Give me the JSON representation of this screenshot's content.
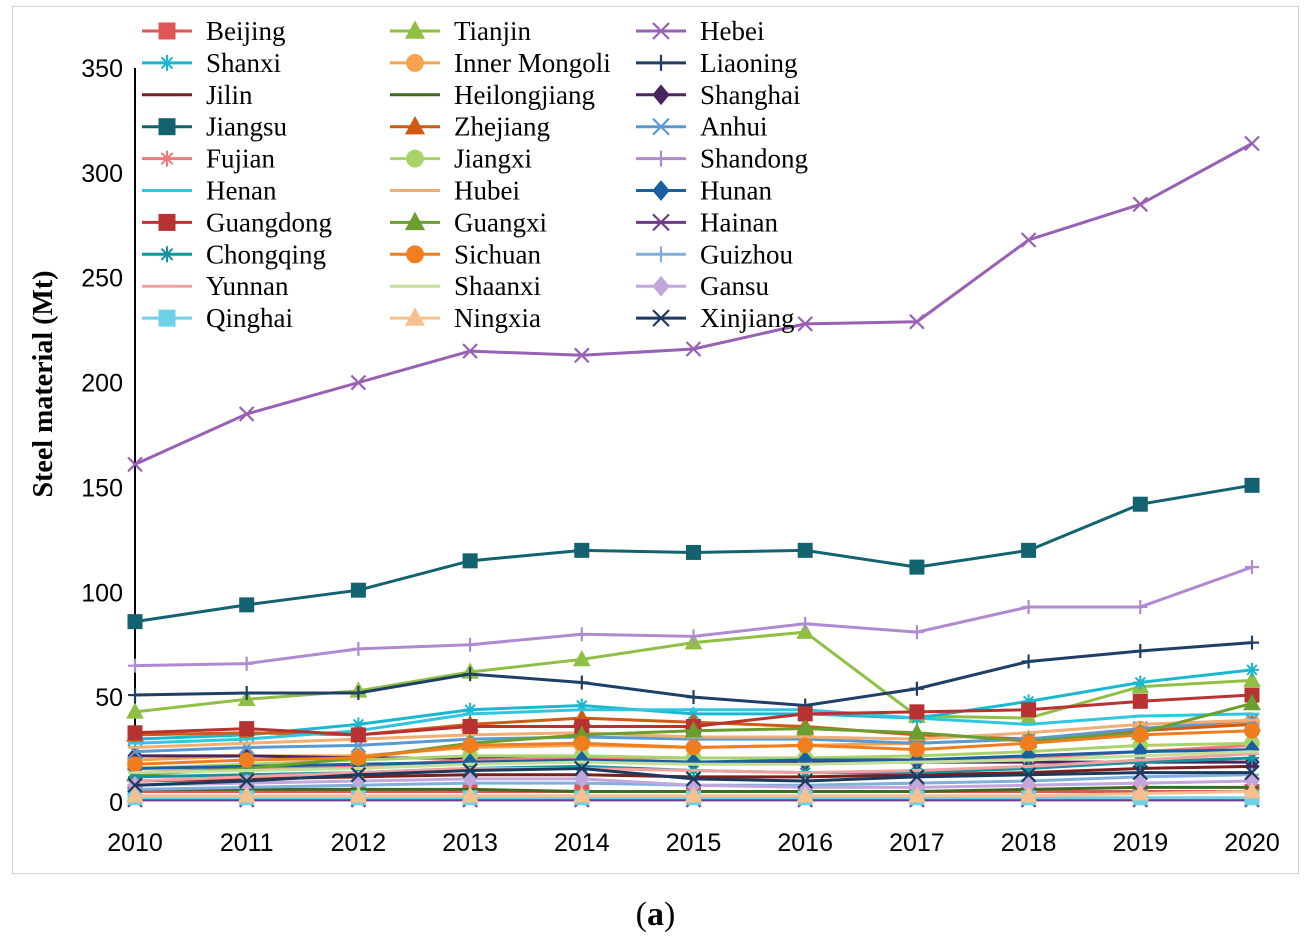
{
  "caption": {
    "open": "(",
    "letter": "a",
    "close": ")"
  },
  "chart_data": {
    "type": "line",
    "title": "",
    "xlabel": "",
    "ylabel": "Steel material  (Mt)",
    "ylim": [
      0,
      350
    ],
    "yticks": [
      0,
      50,
      100,
      150,
      200,
      250,
      300,
      350
    ],
    "x": [
      2010,
      2011,
      2012,
      2013,
      2014,
      2015,
      2016,
      2017,
      2018,
      2019,
      2020
    ],
    "legend_position": "top-left",
    "series": [
      {
        "name": "Beijing",
        "color": "#e05555",
        "marker": "square",
        "values": [
          5,
          5,
          5,
          5,
          5,
          5,
          5,
          5,
          5,
          5,
          5
        ]
      },
      {
        "name": "Tianjin",
        "color": "#8fbf45",
        "marker": "triangle",
        "values": [
          43,
          49,
          53,
          62,
          68,
          76,
          81,
          41,
          40,
          55,
          58
        ]
      },
      {
        "name": "Hebei",
        "color": "#9a60b4",
        "marker": "x",
        "values": [
          161,
          185,
          200,
          215,
          213,
          216,
          228,
          229,
          268,
          285,
          314
        ]
      },
      {
        "name": "Shanxi",
        "color": "#1ab8d0",
        "marker": "asterisk",
        "values": [
          30,
          32,
          37,
          44,
          46,
          42,
          42,
          40,
          48,
          57,
          63
        ]
      },
      {
        "name": "Inner Mongoli",
        "color": "#f7a24c",
        "marker": "circle",
        "values": [
          20,
          22,
          22,
          26,
          27,
          26,
          27,
          28,
          30,
          35,
          38
        ]
      },
      {
        "name": "Liaoning",
        "color": "#1f3f66",
        "marker": "plus",
        "values": [
          51,
          52,
          52,
          61,
          57,
          50,
          46,
          54,
          67,
          72,
          76
        ]
      },
      {
        "name": "Jilin",
        "color": "#7b1e1e",
        "marker": "dash",
        "values": [
          10,
          11,
          12,
          13,
          13,
          12,
          12,
          13,
          14,
          16,
          17
        ]
      },
      {
        "name": "Heilongjiang",
        "color": "#3d6b1f",
        "marker": "dash",
        "values": [
          6,
          6,
          6,
          6,
          5,
          5,
          5,
          5,
          6,
          7,
          7
        ]
      },
      {
        "name": "Shanghai",
        "color": "#4a2560",
        "marker": "diamond",
        "values": [
          22,
          22,
          21,
          21,
          20,
          19,
          19,
          19,
          19,
          19,
          19
        ]
      },
      {
        "name": "Jiangsu",
        "color": "#12626f",
        "marker": "square",
        "values": [
          86,
          94,
          101,
          115,
          120,
          119,
          120,
          112,
          120,
          142,
          151
        ]
      },
      {
        "name": "Zhejiang",
        "color": "#d05a12",
        "marker": "triangle",
        "values": [
          32,
          33,
          32,
          37,
          40,
          38,
          36,
          32,
          30,
          34,
          37
        ]
      },
      {
        "name": "Anhui",
        "color": "#5a9ad2",
        "marker": "x",
        "values": [
          24,
          26,
          27,
          30,
          31,
          30,
          30,
          28,
          30,
          35,
          39
        ]
      },
      {
        "name": "Fujian",
        "color": "#f07a7a",
        "marker": "asterisk",
        "values": [
          14,
          16,
          17,
          20,
          21,
          21,
          21,
          20,
          21,
          24,
          27
        ]
      },
      {
        "name": "Jiangxi",
        "color": "#a8d36b",
        "marker": "circle",
        "values": [
          16,
          18,
          20,
          22,
          22,
          21,
          21,
          22,
          24,
          27,
          28
        ]
      },
      {
        "name": "Shandong",
        "color": "#b08ad0",
        "marker": "plus",
        "values": [
          65,
          66,
          73,
          75,
          80,
          79,
          85,
          81,
          93,
          93,
          112
        ]
      },
      {
        "name": "Henan",
        "color": "#30c6e0",
        "marker": "dash",
        "values": [
          28,
          30,
          34,
          42,
          44,
          44,
          44,
          40,
          37,
          41,
          42
        ]
      },
      {
        "name": "Hubei",
        "color": "#f2ad72",
        "marker": "dash",
        "values": [
          26,
          28,
          30,
          32,
          33,
          31,
          31,
          30,
          33,
          37,
          39
        ]
      },
      {
        "name": "Hunan",
        "color": "#1a5fa0",
        "marker": "diamond",
        "values": [
          16,
          17,
          18,
          19,
          20,
          19,
          20,
          20,
          22,
          24,
          25
        ]
      },
      {
        "name": "Guangdong",
        "color": "#b83232",
        "marker": "square",
        "values": [
          33,
          35,
          32,
          36,
          36,
          36,
          42,
          43,
          44,
          48,
          51
        ]
      },
      {
        "name": "Guangxi",
        "color": "#6a9e2e",
        "marker": "triangle",
        "values": [
          13,
          16,
          21,
          28,
          32,
          34,
          35,
          33,
          29,
          33,
          47
        ]
      },
      {
        "name": "Hainan",
        "color": "#6e3a86",
        "marker": "x",
        "values": [
          1,
          1,
          1,
          1,
          1,
          1,
          1,
          1,
          1,
          1,
          1
        ]
      },
      {
        "name": "Chongqing",
        "color": "#14949e",
        "marker": "asterisk",
        "values": [
          12,
          13,
          14,
          16,
          17,
          15,
          14,
          14,
          16,
          19,
          21
        ]
      },
      {
        "name": "Sichuan",
        "color": "#f07d1e",
        "marker": "circle",
        "values": [
          18,
          20,
          21,
          27,
          28,
          26,
          27,
          25,
          28,
          32,
          34
        ]
      },
      {
        "name": "Guizhou",
        "color": "#7fb0dc",
        "marker": "plus",
        "values": [
          6,
          7,
          8,
          9,
          9,
          8,
          8,
          9,
          10,
          12,
          13
        ]
      },
      {
        "name": "Yunnan",
        "color": "#f2a0a0",
        "marker": "dash",
        "values": [
          10,
          12,
          14,
          16,
          16,
          15,
          14,
          15,
          17,
          20,
          23
        ]
      },
      {
        "name": "Shaanxi",
        "color": "#c4df9a",
        "marker": "dash",
        "values": [
          14,
          15,
          16,
          18,
          19,
          18,
          18,
          19,
          20,
          22,
          24
        ]
      },
      {
        "name": "Gansu",
        "color": "#c2a6dc",
        "marker": "diamond",
        "values": [
          8,
          9,
          10,
          11,
          11,
          8,
          7,
          7,
          8,
          9,
          10
        ]
      },
      {
        "name": "Qinghai",
        "color": "#6fd1e6",
        "marker": "square",
        "values": [
          2,
          2,
          2,
          2,
          2,
          2,
          2,
          2,
          2,
          2,
          2
        ]
      },
      {
        "name": "Ningxia",
        "color": "#f8c08e",
        "marker": "triangle",
        "values": [
          3,
          3,
          3,
          3,
          3,
          3,
          3,
          3,
          3,
          4,
          5
        ]
      },
      {
        "name": "Xinjiang",
        "color": "#1c3a5e",
        "marker": "x",
        "values": [
          8,
          10,
          13,
          15,
          16,
          11,
          10,
          12,
          13,
          14,
          14
        ]
      }
    ]
  }
}
